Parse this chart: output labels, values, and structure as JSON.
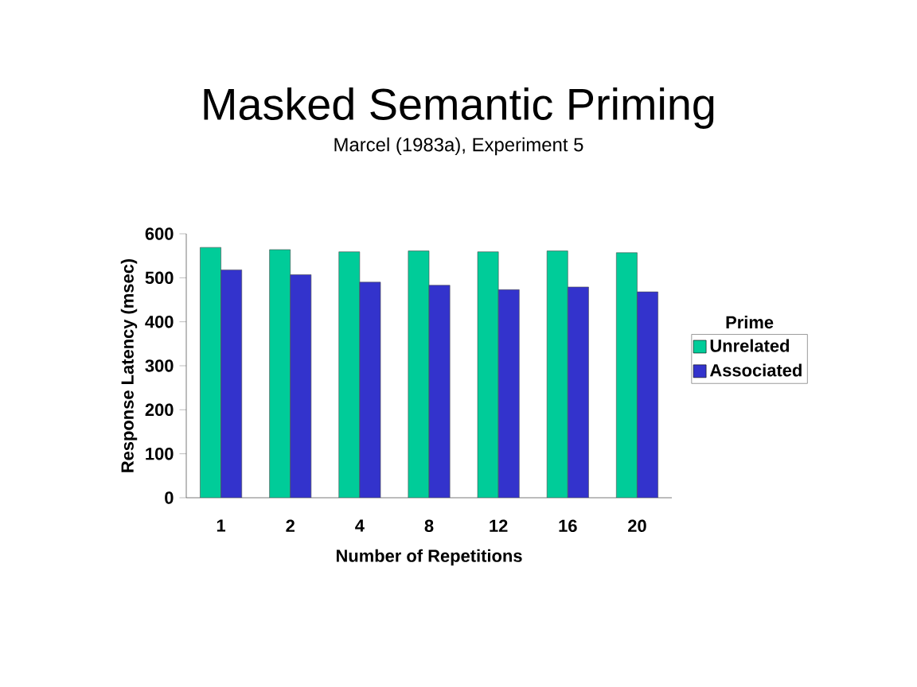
{
  "chart_data": {
    "type": "bar",
    "title": "Masked Semantic Priming",
    "subtitle": "Marcel (1983a), Experiment 5",
    "xlabel": "Number of Repetitions",
    "ylabel": "Response Latency (msec)",
    "legend_title": "Prime",
    "categories": [
      "1",
      "2",
      "4",
      "8",
      "12",
      "16",
      "20"
    ],
    "series": [
      {
        "name": "Unrelated",
        "color": "#00cc99",
        "values": [
          569,
          564,
          559,
          561,
          559,
          561,
          557
        ]
      },
      {
        "name": "Associated",
        "color": "#3333cc",
        "values": [
          518,
          507,
          490,
          483,
          473,
          479,
          468
        ]
      }
    ],
    "ylim": [
      0,
      600
    ],
    "yticks": [
      0,
      100,
      200,
      300,
      400,
      500,
      600
    ],
    "legend": "right",
    "grid": false
  }
}
